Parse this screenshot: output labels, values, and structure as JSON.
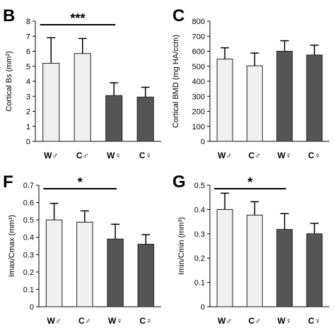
{
  "chart_data": [
    {
      "panel": "B",
      "type": "bar",
      "categories": [
        "W♂",
        "C♂",
        "W♀",
        "C♀"
      ],
      "values": [
        5.2,
        5.85,
        3.05,
        2.95
      ],
      "error": [
        1.7,
        1.0,
        0.85,
        0.65
      ],
      "ylabel": "Cortical Bs (mm²)",
      "ylim": [
        0,
        8
      ],
      "yticks": [
        "0",
        "1",
        "2",
        "3",
        "4",
        "5",
        "6",
        "7",
        "8"
      ],
      "bar_colors": [
        "#f0f0f0",
        "#f0f0f0",
        "#555555",
        "#555555"
      ],
      "significance": {
        "label": "***",
        "from": 0,
        "to": 2
      }
    },
    {
      "panel": "C",
      "type": "bar",
      "categories": [
        "W♂",
        "C♂",
        "W♀",
        "C♀"
      ],
      "values": [
        548,
        503,
        600,
        575
      ],
      "error": [
        75,
        85,
        70,
        65
      ],
      "ylabel": "Cortical BMD (mg HA/ccm)",
      "ylim": [
        0,
        800
      ],
      "yticks": [
        "0",
        "100",
        "200",
        "300",
        "400",
        "500",
        "600",
        "700",
        "800"
      ],
      "bar_colors": [
        "#f0f0f0",
        "#f0f0f0",
        "#555555",
        "#555555"
      ]
    },
    {
      "panel": "F",
      "type": "bar",
      "categories": [
        "W♂",
        "C♂",
        "W♀",
        "C♀"
      ],
      "values": [
        0.5,
        0.487,
        0.39,
        0.36
      ],
      "error": [
        0.095,
        0.065,
        0.085,
        0.055
      ],
      "ylabel": "Imax/Cmax (mm³)",
      "ylim": [
        0,
        0.7
      ],
      "yticks": [
        "0",
        "0.1",
        "0.2",
        "0.3",
        "0.4",
        "0.5",
        "0.6",
        "0.7"
      ],
      "bar_colors": [
        "#f0f0f0",
        "#f0f0f0",
        "#555555",
        "#555555"
      ],
      "significance": {
        "label": "*",
        "from": 0,
        "to": 2
      }
    },
    {
      "panel": "G",
      "type": "bar",
      "categories": [
        "W♂",
        "C♂",
        "W♀",
        "C♀"
      ],
      "values": [
        0.4,
        0.377,
        0.318,
        0.3
      ],
      "error": [
        0.067,
        0.055,
        0.065,
        0.043
      ],
      "ylabel": "Imin/Cmin (mm³)",
      "ylim": [
        0,
        0.5
      ],
      "yticks": [
        "0",
        "0.1",
        "0.2",
        "0.3",
        "0.4",
        "0.5"
      ],
      "bar_colors": [
        "#f0f0f0",
        "#f0f0f0",
        "#555555",
        "#555555"
      ],
      "significance": {
        "label": "*",
        "from": 0,
        "to": 2
      }
    }
  ]
}
